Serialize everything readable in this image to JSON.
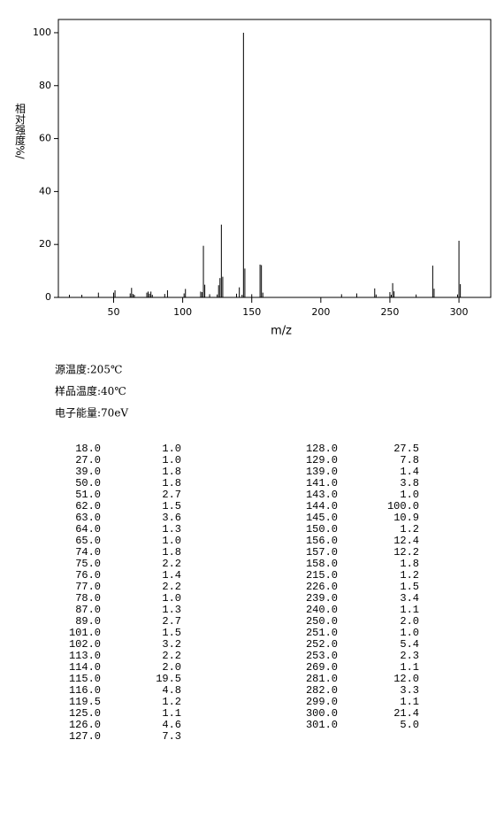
{
  "chart_data": {
    "type": "stem",
    "ylabel": "相对强度%/",
    "xlabel": "m/z",
    "xlim": [
      10,
      323
    ],
    "ylim": [
      0,
      105
    ],
    "xticks": [
      50,
      100,
      150,
      200,
      250,
      300
    ],
    "yticks": [
      0,
      20,
      40,
      60,
      80,
      100
    ],
    "color": "#000000",
    "x": [
      18,
      27,
      39,
      50,
      51,
      62,
      63,
      64,
      65,
      74,
      75,
      76,
      77,
      78,
      87,
      89,
      101,
      102,
      113,
      114,
      115,
      116,
      119.5,
      125,
      126,
      127,
      128,
      129,
      139,
      141,
      143,
      144,
      145,
      150,
      156,
      157,
      158,
      215,
      226,
      239,
      240,
      250,
      251,
      252,
      253,
      269,
      281,
      282,
      299,
      300,
      301
    ],
    "values": [
      1.0,
      1.0,
      1.8,
      1.8,
      2.7,
      1.5,
      3.6,
      1.3,
      1.0,
      1.8,
      2.2,
      1.4,
      2.2,
      1.0,
      1.3,
      2.7,
      1.5,
      3.2,
      2.2,
      2.0,
      19.5,
      4.8,
      1.2,
      1.1,
      4.6,
      7.3,
      27.5,
      7.8,
      1.4,
      3.8,
      1.0,
      100.0,
      10.9,
      1.2,
      12.4,
      12.2,
      1.8,
      1.2,
      1.5,
      3.4,
      1.1,
      2.0,
      1.0,
      5.4,
      2.3,
      1.1,
      12.0,
      3.3,
      1.1,
      21.4,
      5.0
    ],
    "x_labels": [
      "18.0",
      "27.0",
      "39.0",
      "50.0",
      "51.0",
      "62.0",
      "63.0",
      "64.0",
      "65.0",
      "74.0",
      "75.0",
      "76.0",
      "77.0",
      "78.0",
      "87.0",
      "89.0",
      "101.0",
      "102.0",
      "113.0",
      "114.0",
      "115.0",
      "116.0",
      "119.5",
      "125.0",
      "126.0",
      "127.0",
      "128.0",
      "129.0",
      "139.0",
      "141.0",
      "143.0",
      "144.0",
      "145.0",
      "150.0",
      "156.0",
      "157.0",
      "158.0",
      "215.0",
      "226.0",
      "239.0",
      "240.0",
      "250.0",
      "251.0",
      "252.0",
      "253.0",
      "269.0",
      "281.0",
      "282.0",
      "299.0",
      "300.0",
      "301.0"
    ],
    "value_labels": [
      "1.0",
      "1.0",
      "1.8",
      "1.8",
      "2.7",
      "1.5",
      "3.6",
      "1.3",
      "1.0",
      "1.8",
      "2.2",
      "1.4",
      "2.2",
      "1.0",
      "1.3",
      "2.7",
      "1.5",
      "3.2",
      "2.2",
      "2.0",
      "19.5",
      "4.8",
      "1.2",
      "1.1",
      "4.6",
      "7.3",
      "27.5",
      "7.8",
      "1.4",
      "3.8",
      "1.0",
      "100.0",
      "10.9",
      "1.2",
      "12.4",
      "12.2",
      "1.8",
      "1.2",
      "1.5",
      "3.4",
      "1.1",
      "2.0",
      "1.0",
      "5.4",
      "2.3",
      "1.1",
      "12.0",
      "3.3",
      "1.1",
      "21.4",
      "5.0"
    ]
  },
  "conditions": [
    "源温度:205℃",
    "样品温度:40℃",
    "电子能量:70eV"
  ]
}
